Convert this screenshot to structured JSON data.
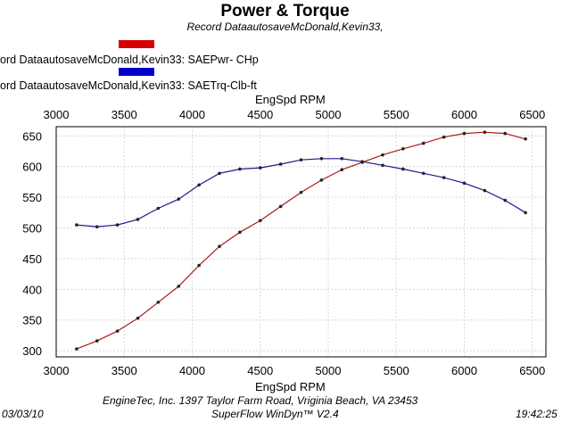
{
  "header": {
    "title": "Power & Torque",
    "subtitle": "Record DataautosaveMcDonald,Kevin33,"
  },
  "legend": [
    {
      "label": "ord DataautosaveMcDonald,Kevin33: SAEPwr- CHp",
      "color": "#d40000"
    },
    {
      "label": "ord DataautosaveMcDonald,Kevin33: SAETrq-Clb-ft",
      "color": "#0000c8"
    }
  ],
  "footer": {
    "date": "03/03/10",
    "company": "EngineTec, Inc. 1397 Taylor Farm Road, Vriginia Beach, VA 23453",
    "software": "SuperFlow WinDyn™ V2.4",
    "time": "19:42:25"
  },
  "chart_data": {
    "type": "line",
    "title": "Power & Torque",
    "xlabel": "EngSpd  RPM",
    "x_ticks": [
      "3000",
      "3500",
      "4000",
      "4500",
      "5000",
      "5500",
      "6000",
      "6500"
    ],
    "y_ticks": [
      "650",
      "600",
      "550",
      "500",
      "450",
      "400",
      "350",
      "300"
    ],
    "xlim": [
      3000,
      6600
    ],
    "ylim": [
      290,
      665
    ],
    "grid": true,
    "series": [
      {
        "name": "SAEPwr- CHp",
        "color": "#b01818",
        "x": [
          3150,
          3300,
          3450,
          3600,
          3750,
          3900,
          4050,
          4200,
          4350,
          4500,
          4650,
          4800,
          4950,
          5100,
          5250,
          5400,
          5550,
          5700,
          5850,
          6000,
          6150,
          6300,
          6450
        ],
        "values": [
          303,
          316,
          332,
          353,
          379,
          405,
          439,
          470,
          493,
          512,
          535,
          558,
          578,
          595,
          607,
          619,
          629,
          638,
          648,
          654,
          656,
          654,
          645
        ]
      },
      {
        "name": "SAETrq-Clb-ft",
        "color": "#1a1a8c",
        "x": [
          3150,
          3300,
          3450,
          3600,
          3750,
          3900,
          4050,
          4200,
          4350,
          4500,
          4650,
          4800,
          4950,
          5100,
          5250,
          5400,
          5550,
          5700,
          5850,
          6000,
          6150,
          6300,
          6450
        ],
        "values": [
          505,
          502,
          505,
          514,
          532,
          547,
          570,
          589,
          596,
          598,
          604,
          611,
          613,
          613,
          608,
          602,
          596,
          589,
          582,
          573,
          561,
          545,
          525
        ]
      }
    ]
  }
}
